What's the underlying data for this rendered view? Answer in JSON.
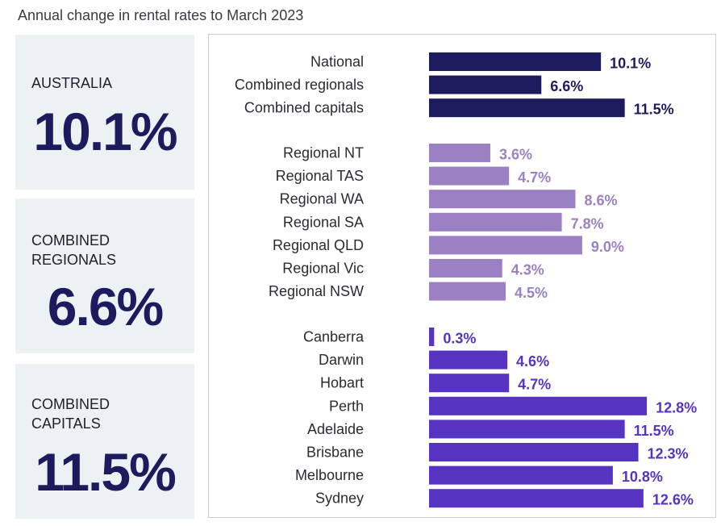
{
  "title": "Annual change in rental rates to March 2023",
  "cards": [
    {
      "label_lines": [
        "AUSTRALIA"
      ],
      "value": "10.1%"
    },
    {
      "label_lines": [
        "COMBINED",
        "REGIONALS"
      ],
      "value": "6.6%"
    },
    {
      "label_lines": [
        "COMBINED",
        "CAPITALS"
      ],
      "value": "11.5%"
    }
  ],
  "chart_data": {
    "type": "bar",
    "orientation": "horizontal",
    "title": "Annual change in rental rates to March 2023",
    "value_suffix": "%",
    "xlim": [
      0,
      13.5
    ],
    "groups": [
      {
        "color": "#1c1b5e",
        "categories": [
          "National",
          "Combined regionals",
          "Combined capitals"
        ],
        "values": [
          10.1,
          6.6,
          11.5
        ]
      },
      {
        "color": "#9b80c4",
        "categories": [
          "Regional NT",
          "Regional TAS",
          "Regional WA",
          "Regional SA",
          "Regional QLD",
          "Regional Vic",
          "Regional NSW"
        ],
        "values": [
          3.6,
          4.7,
          8.6,
          7.8,
          9.0,
          4.3,
          4.5
        ]
      },
      {
        "color": "#5633c0",
        "categories": [
          "Canberra",
          "Darwin",
          "Hobart",
          "Perth",
          "Adelaide",
          "Brisbane",
          "Melbourne",
          "Sydney"
        ],
        "values": [
          0.3,
          4.6,
          4.7,
          12.8,
          11.5,
          12.3,
          10.8,
          12.6
        ]
      }
    ]
  }
}
